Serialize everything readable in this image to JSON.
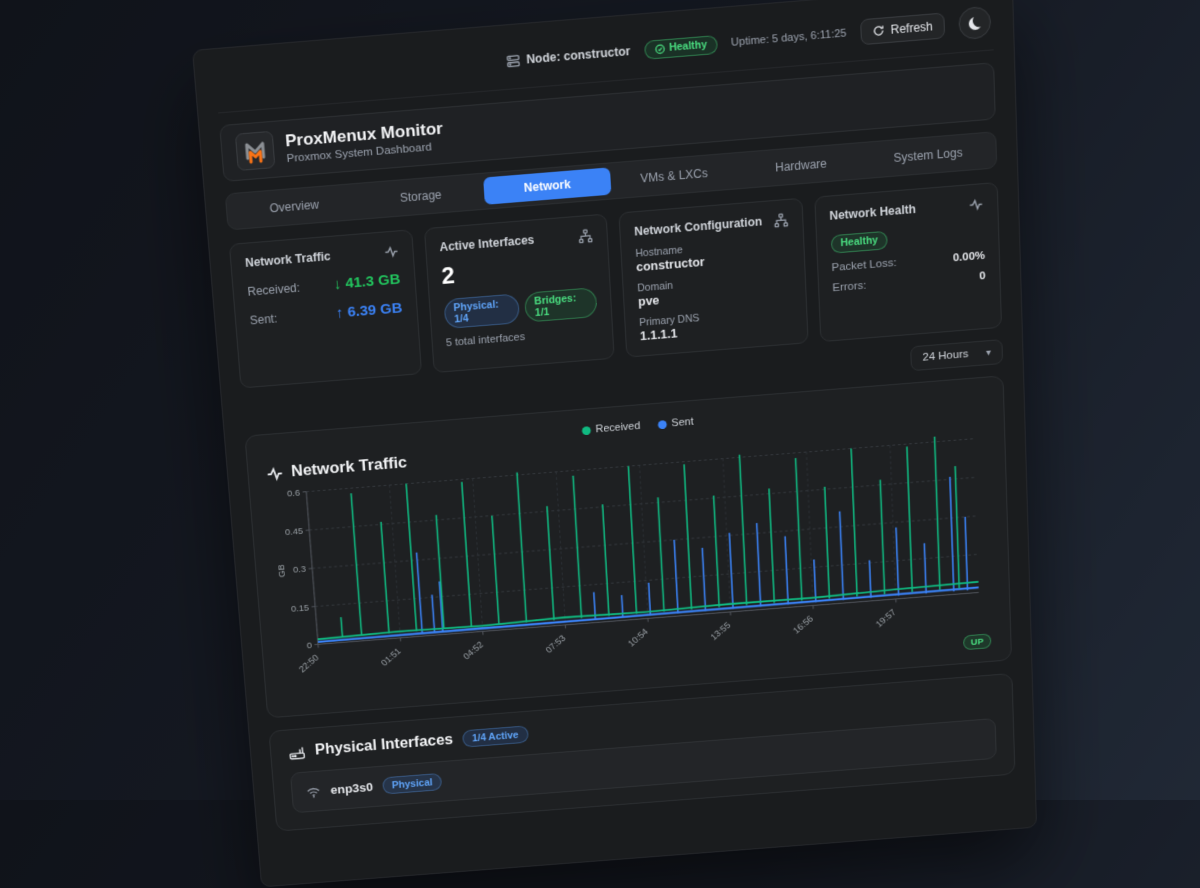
{
  "topbar": {
    "node": "Node: constructor",
    "health": "Healthy",
    "uptime": "Uptime: 5 days, 6:11:25",
    "refresh": "Refresh"
  },
  "header": {
    "title": "ProxMenux Monitor",
    "subtitle": "Proxmox System Dashboard"
  },
  "tabs": [
    {
      "label": "Overview",
      "active": false
    },
    {
      "label": "Storage",
      "active": false
    },
    {
      "label": "Network",
      "active": true
    },
    {
      "label": "VMs & LXCs",
      "active": false
    },
    {
      "label": "Hardware",
      "active": false
    },
    {
      "label": "System Logs",
      "active": false
    }
  ],
  "cards": {
    "traffic": {
      "title": "Network Traffic",
      "received_label": "Received:",
      "received_value": "↓ 41.3 GB",
      "sent_label": "Sent:",
      "sent_value": "↑ 6.39 GB"
    },
    "interfaces": {
      "title": "Active Interfaces",
      "count": "2",
      "physical_badge": "Physical: 1/4",
      "bridges_badge": "Bridges: 1/1",
      "total": "5 total interfaces"
    },
    "config": {
      "title": "Network Configuration",
      "hostname_label": "Hostname",
      "hostname": "constructor",
      "domain_label": "Domain",
      "domain": "pve",
      "dns_label": "Primary DNS",
      "dns": "1.1.1.1"
    },
    "health": {
      "title": "Network Health",
      "status": "Healthy",
      "packet_loss_label": "Packet Loss:",
      "packet_loss": "0.00%",
      "errors_label": "Errors:",
      "errors": "0"
    }
  },
  "time_range": {
    "selected": "24 Hours",
    "chevron": "▾"
  },
  "chart_card": {
    "title": "Network Traffic",
    "up_badge": "UP"
  },
  "chart_data": {
    "type": "line",
    "title": "Network Traffic",
    "ylabel": "GB",
    "ylim": [
      0,
      0.6
    ],
    "yticks": [
      0,
      0.15,
      0.3,
      0.45,
      0.6
    ],
    "x_range_hours": 24,
    "xticks": [
      {
        "t": 0,
        "label": "22:50"
      },
      {
        "t": 3,
        "label": "01:51"
      },
      {
        "t": 6,
        "label": "04:52"
      },
      {
        "t": 9,
        "label": "07:53"
      },
      {
        "t": 12,
        "label": "10:54"
      },
      {
        "t": 15,
        "label": "13:55"
      },
      {
        "t": 18,
        "label": "16:56"
      },
      {
        "t": 21,
        "label": "19:57"
      }
    ],
    "legend": [
      "Received",
      "Sent"
    ],
    "grid": true,
    "legend_position": "top-center",
    "series": [
      {
        "name": "Sent",
        "color": "#3b82f6",
        "baseline": 0.012,
        "base": [
          [
            0,
            0.01
          ],
          [
            6,
            0.012
          ],
          [
            12,
            0.014
          ],
          [
            18,
            0.016
          ],
          [
            24,
            0.02
          ]
        ],
        "spikes": [
          {
            "t": 3.8,
            "v": 0.33
          },
          {
            "t": 4.25,
            "v": 0.16
          },
          {
            "t": 4.55,
            "v": 0.21
          },
          {
            "t": 10.1,
            "v": 0.12
          },
          {
            "t": 11.1,
            "v": 0.1
          },
          {
            "t": 12.1,
            "v": 0.14
          },
          {
            "t": 13.1,
            "v": 0.3
          },
          {
            "t": 14.1,
            "v": 0.26
          },
          {
            "t": 15.1,
            "v": 0.31
          },
          {
            "t": 16.1,
            "v": 0.34
          },
          {
            "t": 17.1,
            "v": 0.28
          },
          {
            "t": 18.1,
            "v": 0.18
          },
          {
            "t": 19.1,
            "v": 0.36
          },
          {
            "t": 20.1,
            "v": 0.16
          },
          {
            "t": 21.1,
            "v": 0.28
          },
          {
            "t": 22.1,
            "v": 0.21
          },
          {
            "t": 23.1,
            "v": 0.46
          },
          {
            "t": 23.6,
            "v": 0.3
          }
        ]
      },
      {
        "name": "Received",
        "color": "#10b981",
        "baseline": 0.022,
        "base": [
          [
            0,
            0.02
          ],
          [
            3,
            0.026
          ],
          [
            6,
            0.022
          ],
          [
            9,
            0.03
          ],
          [
            12,
            0.026
          ],
          [
            15,
            0.032
          ],
          [
            18,
            0.03
          ],
          [
            21,
            0.038
          ],
          [
            24,
            0.042
          ]
        ],
        "spikes": [
          {
            "t": 0.9,
            "v": 0.1
          },
          {
            "t": 1.6,
            "v": 0.58
          },
          {
            "t": 2.6,
            "v": 0.46
          },
          {
            "t": 3.6,
            "v": 0.6
          },
          {
            "t": 4.6,
            "v": 0.47
          },
          {
            "t": 5.6,
            "v": 0.59
          },
          {
            "t": 6.6,
            "v": 0.45
          },
          {
            "t": 7.6,
            "v": 0.61
          },
          {
            "t": 8.6,
            "v": 0.47
          },
          {
            "t": 9.6,
            "v": 0.58
          },
          {
            "t": 10.6,
            "v": 0.46
          },
          {
            "t": 11.6,
            "v": 0.6
          },
          {
            "t": 12.6,
            "v": 0.47
          },
          {
            "t": 13.6,
            "v": 0.59
          },
          {
            "t": 14.6,
            "v": 0.46
          },
          {
            "t": 15.6,
            "v": 0.61
          },
          {
            "t": 16.6,
            "v": 0.47
          },
          {
            "t": 17.6,
            "v": 0.58
          },
          {
            "t": 18.6,
            "v": 0.46
          },
          {
            "t": 19.6,
            "v": 0.6
          },
          {
            "t": 20.6,
            "v": 0.47
          },
          {
            "t": 21.6,
            "v": 0.59
          },
          {
            "t": 22.6,
            "v": 0.62
          },
          {
            "t": 23.3,
            "v": 0.5
          }
        ]
      }
    ]
  },
  "physical": {
    "title": "Physical Interfaces",
    "active_badge": "1/4 Active",
    "rows": [
      {
        "name": "enp3s0",
        "badge": "Physical"
      }
    ]
  },
  "colors": {
    "accent_blue": "#3b82f6",
    "accent_green": "#22c55e",
    "received_line": "#10b981",
    "sent_line": "#3b82f6",
    "logo_orange": "#f97316",
    "logo_gray": "#8b8f94"
  }
}
